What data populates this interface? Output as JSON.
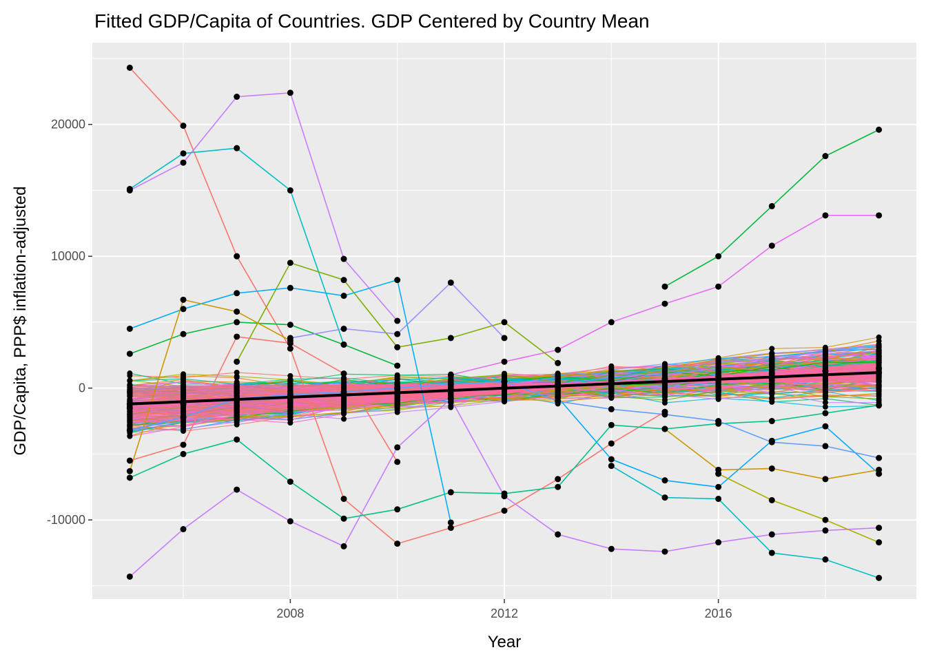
{
  "chart_data": {
    "type": "line",
    "title": "Fitted GDP/Capita of Countries. GDP Centered by Country Mean",
    "xlabel": "Year",
    "ylabel": "GDP/Capita, PPP$ inflation-adjusted",
    "xlim": [
      2004.3,
      2019.7
    ],
    "ylim": [
      -16000,
      26200
    ],
    "x_ticks": [
      2008,
      2012,
      2016
    ],
    "x_tick_labels": [
      "2008",
      "2012",
      "2016"
    ],
    "y_ticks": [
      -10000,
      0,
      10000,
      20000
    ],
    "y_tick_labels": [
      "-10000",
      "0",
      "10000",
      "20000"
    ],
    "grid": true,
    "legend": "none",
    "background": "#ebebeb",
    "x": [
      2005,
      2006,
      2007,
      2008,
      2009,
      2010,
      2011,
      2012,
      2013,
      2014,
      2015,
      2016,
      2017,
      2018,
      2019
    ],
    "series": [
      {
        "color": "#f8766d",
        "values": [
          24300,
          19900,
          10000,
          3000,
          -8400,
          -11800,
          -10600,
          -9300,
          -6900,
          -4200,
          -1800,
          null,
          null,
          null,
          null
        ]
      },
      {
        "color": "#c77cff",
        "values": [
          15000,
          17100,
          22100,
          22400,
          9800,
          5100,
          null,
          null,
          null,
          null,
          null,
          null,
          null,
          null,
          null
        ]
      },
      {
        "color": "#00bfc4",
        "values": [
          15100,
          17800,
          18200,
          15000,
          3300,
          null,
          null,
          null,
          null,
          null,
          null,
          null,
          null,
          null,
          null
        ]
      },
      {
        "color": "#00ba38",
        "values": [
          2600,
          4100,
          5000,
          4800,
          3300,
          1700,
          null,
          null,
          null,
          null,
          7700,
          10000,
          13800,
          17600,
          19600
        ]
      },
      {
        "color": "#e76bf3",
        "values": [
          null,
          null,
          null,
          null,
          null,
          null,
          1000,
          2000,
          2900,
          5000,
          6400,
          7700,
          10800,
          13100,
          13100
        ]
      },
      {
        "color": "#7cae00",
        "values": [
          null,
          null,
          2000,
          9500,
          8200,
          3100,
          3800,
          5000,
          1900,
          null,
          null,
          null,
          null,
          null,
          null
        ]
      },
      {
        "color": "#00b0f6",
        "values": [
          4500,
          6000,
          7200,
          7600,
          7000,
          8200,
          -10200,
          null,
          null,
          null,
          null,
          null,
          null,
          null,
          null
        ]
      },
      {
        "color": "#9590ff",
        "values": [
          null,
          null,
          null,
          3800,
          4500,
          4100,
          8000,
          3800,
          null,
          null,
          null,
          null,
          null,
          null,
          null
        ]
      },
      {
        "color": "#c77cff",
        "values": [
          -14300,
          -10700,
          -7700,
          -10100,
          -12000,
          -4500,
          -800,
          -8200,
          -11100,
          -12200,
          -12400,
          -11700,
          -11100,
          -10800,
          -10600
        ]
      },
      {
        "color": "#00bfc4",
        "values": [
          null,
          null,
          null,
          null,
          null,
          null,
          null,
          null,
          null,
          -5900,
          -8300,
          -8400,
          -12500,
          -13000,
          -14400
        ]
      },
      {
        "color": "#00a9ff",
        "values": [
          null,
          null,
          null,
          null,
          null,
          null,
          null,
          null,
          -700,
          -5400,
          -7000,
          -7500,
          -4000,
          -2900,
          -6500
        ]
      },
      {
        "color": "#00c08b",
        "values": [
          -6800,
          -5000,
          -3900,
          -7100,
          -9900,
          -9200,
          -7900,
          -8000,
          -7500,
          -2800,
          -3100,
          -2700,
          -2500,
          -1900,
          -1300
        ]
      },
      {
        "color": "#cd9600",
        "values": [
          -6300,
          6700,
          5800,
          3600,
          null,
          null,
          null,
          null,
          null,
          null,
          -3100,
          -6200,
          -6100,
          -6900,
          -6200
        ]
      },
      {
        "color": "#abb000",
        "values": [
          null,
          null,
          null,
          null,
          null,
          null,
          null,
          null,
          null,
          null,
          null,
          -6500,
          -8500,
          -10000,
          -11700
        ]
      },
      {
        "color": "#f8766d",
        "values": [
          -5500,
          -4300,
          3900,
          3400,
          1100,
          -5600,
          null,
          null,
          null,
          null,
          null,
          null,
          null,
          null,
          null
        ]
      },
      {
        "color": "#619cff",
        "values": [
          -3200,
          -2200,
          -800,
          -500,
          -300,
          0,
          300,
          500,
          -1000,
          -1600,
          -2000,
          -2500,
          -4100,
          -4400,
          -5300
        ]
      },
      {
        "color": "#ff61c3",
        "values": [
          -1500,
          -1200,
          -900,
          -700,
          -500,
          -300,
          -100,
          100,
          300,
          500,
          700,
          900,
          1100,
          1300,
          1500
        ]
      },
      {
        "color": "#000000",
        "values": [
          -1200,
          -1030,
          -860,
          -690,
          -520,
          -350,
          -180,
          -10,
          160,
          330,
          500,
          670,
          840,
          1010,
          1180
        ]
      }
    ]
  }
}
